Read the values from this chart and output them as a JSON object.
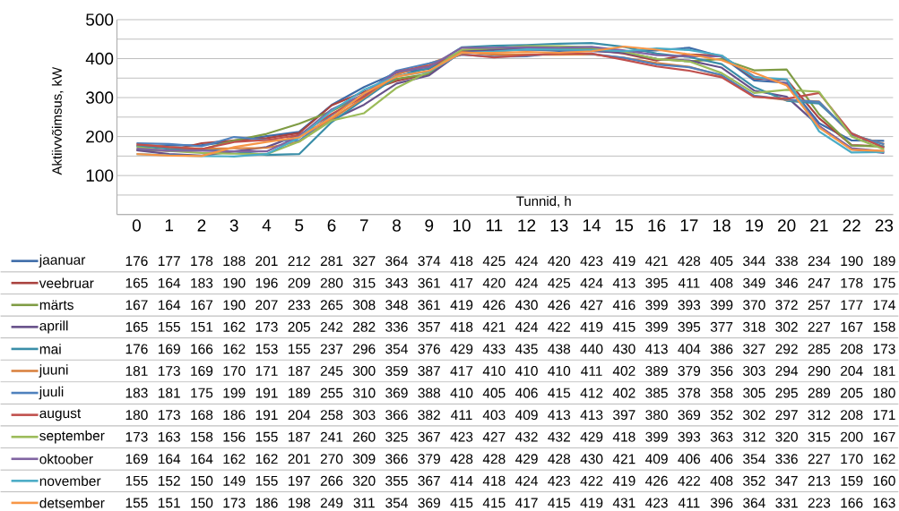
{
  "chart_data": {
    "type": "line",
    "ylabel": "Aktiivvõimsus, kW",
    "xlabel": "Tunnid, h",
    "categories": [
      "0",
      "1",
      "2",
      "3",
      "4",
      "5",
      "6",
      "7",
      "8",
      "9",
      "10",
      "11",
      "12",
      "13",
      "14",
      "15",
      "16",
      "17",
      "18",
      "19",
      "20",
      "21",
      "22",
      "23"
    ],
    "ylim": [
      0,
      500
    ],
    "yticks": [
      {
        "value": 0,
        "label": null
      },
      {
        "value": 50,
        "label": null
      },
      100,
      {
        "value": 150,
        "label": null
      },
      200,
      {
        "value": 250,
        "label": null
      },
      300,
      {
        "value": 350,
        "label": null
      },
      400,
      {
        "value": 450,
        "label": null
      },
      500
    ],
    "grid": "y",
    "legend": "bottom",
    "data_labels": true,
    "marker": "none",
    "line_style": "solid",
    "series": [
      {
        "name": "jaanuar",
        "color": "#3d6ba8",
        "values": [
          176,
          177,
          178,
          188,
          201,
          212,
          281,
          327,
          364,
          374,
          418,
          425,
          424,
          420,
          423,
          419,
          421,
          428,
          405,
          344,
          338,
          234,
          190,
          189
        ]
      },
      {
        "name": "veebruar",
        "color": "#a9433f",
        "values": [
          165,
          164,
          183,
          190,
          196,
          209,
          280,
          315,
          343,
          361,
          417,
          420,
          424,
          425,
          424,
          413,
          395,
          411,
          408,
          349,
          346,
          247,
          178,
          175
        ]
      },
      {
        "name": "märts",
        "color": "#7f9c44",
        "values": [
          167,
          164,
          167,
          190,
          207,
          233,
          265,
          308,
          348,
          361,
          419,
          426,
          430,
          426,
          427,
          416,
          399,
          393,
          399,
          370,
          372,
          257,
          177,
          174
        ]
      },
      {
        "name": "aprill",
        "color": "#67518a",
        "values": [
          165,
          155,
          151,
          162,
          173,
          205,
          242,
          282,
          336,
          357,
          418,
          421,
          424,
          422,
          419,
          415,
          399,
          395,
          377,
          318,
          302,
          227,
          167,
          158
        ]
      },
      {
        "name": "mai",
        "color": "#3a8ea8",
        "values": [
          176,
          169,
          166,
          162,
          153,
          155,
          237,
          296,
          354,
          376,
          429,
          433,
          435,
          438,
          440,
          430,
          413,
          404,
          386,
          327,
          292,
          285,
          208,
          173
        ]
      },
      {
        "name": "juuni",
        "color": "#d98240",
        "values": [
          181,
          173,
          169,
          170,
          171,
          187,
          245,
          300,
          359,
          387,
          417,
          410,
          410,
          410,
          411,
          402,
          389,
          379,
          356,
          303,
          294,
          290,
          204,
          181
        ]
      },
      {
        "name": "juuli",
        "color": "#4f81bd",
        "values": [
          183,
          181,
          175,
          199,
          191,
          189,
          255,
          310,
          369,
          388,
          410,
          405,
          406,
          415,
          412,
          402,
          385,
          378,
          358,
          305,
          295,
          289,
          205,
          180
        ]
      },
      {
        "name": "august",
        "color": "#c0504d",
        "values": [
          180,
          173,
          168,
          186,
          191,
          204,
          258,
          303,
          366,
          382,
          411,
          403,
          409,
          413,
          413,
          397,
          380,
          369,
          352,
          302,
          297,
          312,
          208,
          171
        ]
      },
      {
        "name": "september",
        "color": "#9bbb59",
        "values": [
          173,
          163,
          158,
          156,
          155,
          187,
          241,
          260,
          325,
          367,
          423,
          427,
          432,
          432,
          429,
          418,
          399,
          393,
          363,
          312,
          320,
          315,
          200,
          167
        ]
      },
      {
        "name": "oktoober",
        "color": "#8064a2",
        "values": [
          169,
          164,
          164,
          162,
          162,
          201,
          270,
          309,
          366,
          379,
          428,
          428,
          429,
          428,
          430,
          421,
          409,
          406,
          406,
          354,
          336,
          227,
          170,
          162
        ]
      },
      {
        "name": "november",
        "color": "#4bacc6",
        "values": [
          155,
          152,
          150,
          149,
          155,
          197,
          266,
          320,
          355,
          367,
          414,
          418,
          424,
          423,
          422,
          419,
          426,
          422,
          408,
          352,
          347,
          213,
          159,
          160
        ]
      },
      {
        "name": "detsember",
        "color": "#f79646",
        "values": [
          155,
          151,
          150,
          173,
          186,
          198,
          249,
          311,
          354,
          369,
          415,
          415,
          417,
          415,
          419,
          431,
          423,
          411,
          396,
          364,
          331,
          223,
          166,
          163
        ]
      }
    ]
  }
}
